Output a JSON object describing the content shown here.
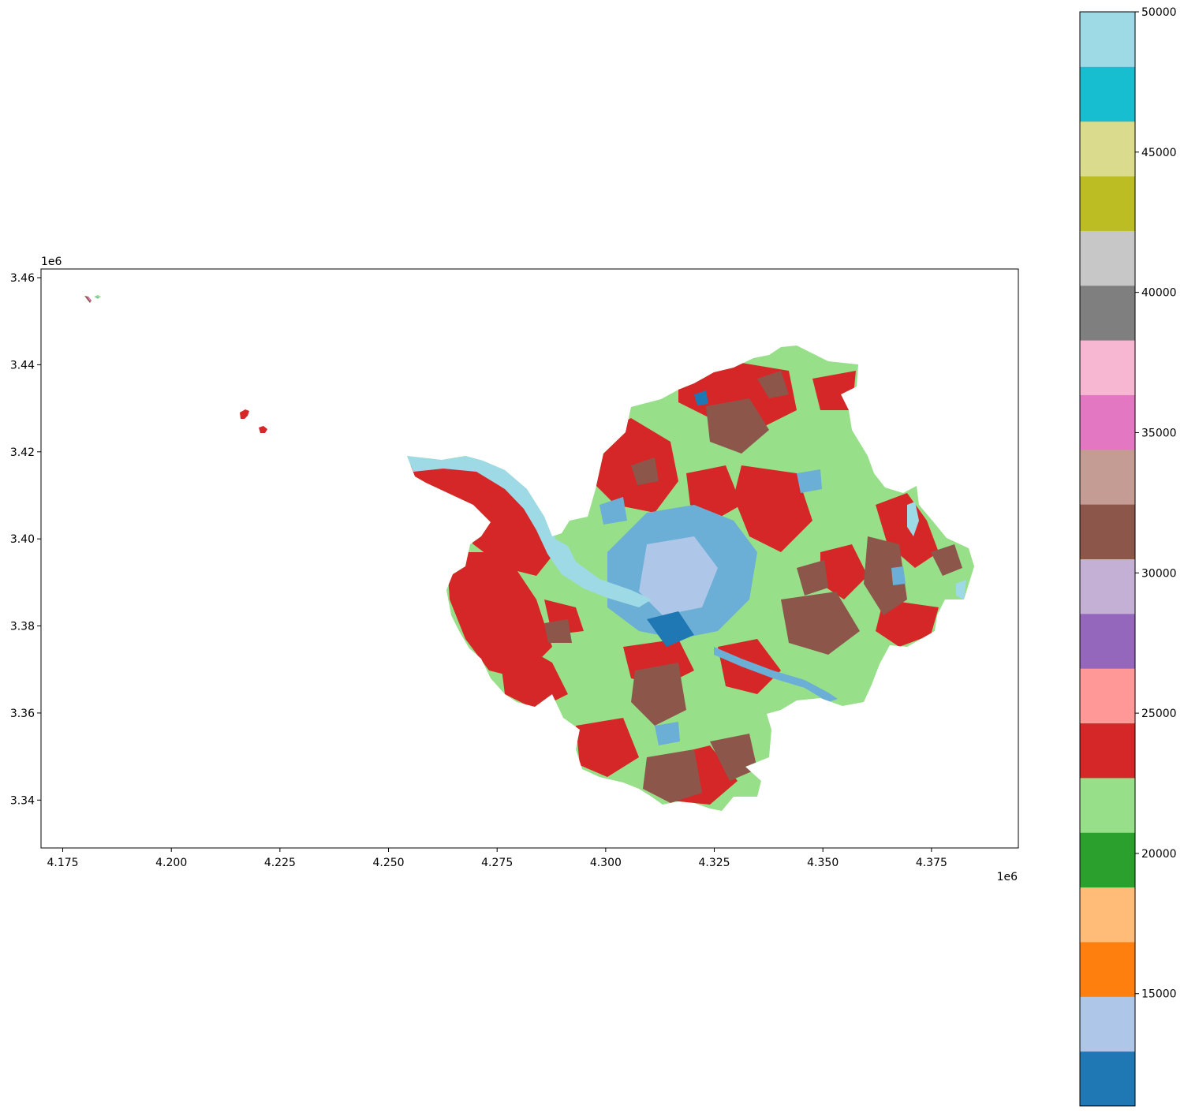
{
  "map": {
    "x_axis": {
      "range": [
        4.17,
        4.395
      ],
      "ticks": [
        4.175,
        4.2,
        4.225,
        4.25,
        4.275,
        4.3,
        4.325,
        4.35,
        4.375
      ],
      "tick_labels": [
        "4.175",
        "4.200",
        "4.225",
        "4.250",
        "4.275",
        "4.300",
        "4.325",
        "4.350",
        "4.375"
      ],
      "offset_text": "1e6"
    },
    "y_axis": {
      "range": [
        3.329,
        3.462
      ],
      "ticks": [
        3.34,
        3.36,
        3.38,
        3.4,
        3.42,
        3.44,
        3.46
      ],
      "tick_labels": [
        "3.34",
        "3.36",
        "3.38",
        "3.40",
        "3.42",
        "3.44",
        "3.46"
      ],
      "offset_text": "1e6"
    },
    "main_region_colors": [
      "#98df8a",
      "#d62728",
      "#8c564b",
      "#6baed6",
      "#aec7e8",
      "#1f77b4",
      "#9edae5"
    ]
  },
  "colorbar": {
    "range": [
      11000,
      50000
    ],
    "ticks": [
      15000,
      20000,
      25000,
      30000,
      35000,
      40000,
      45000,
      50000
    ],
    "tick_labels": [
      "15000",
      "20000",
      "25000",
      "30000",
      "35000",
      "40000",
      "45000",
      "50000"
    ],
    "colors": [
      "#1f77b4",
      "#aec7e8",
      "#ff7f0e",
      "#ffbb78",
      "#2ca02c",
      "#98df8a",
      "#d62728",
      "#ff9896",
      "#9467bd",
      "#c5b0d5",
      "#8c564b",
      "#c49c94",
      "#e377c2",
      "#f7b6d2",
      "#7f7f7f",
      "#c7c7c7",
      "#bcbd22",
      "#dbdb8d",
      "#17becf",
      "#9edae5"
    ]
  }
}
